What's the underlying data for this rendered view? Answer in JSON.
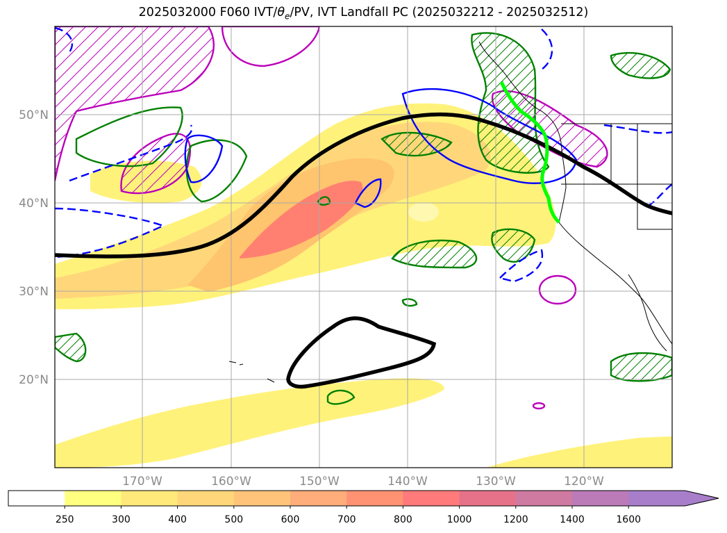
{
  "title": {
    "prefix": "2025032000 F060 IVT/",
    "theta": "θ",
    "theta_sub": "e",
    "suffix": "/PV, IVT Landfall PC (2025032212 - 2025032512)"
  },
  "grid": {
    "lat_labels": [
      "50°N",
      "40°N",
      "30°N",
      "20°N"
    ],
    "lon_labels": [
      "170°W",
      "160°W",
      "150°W",
      "140°W",
      "130°W",
      "120°W"
    ]
  },
  "colorbar": {
    "tick_labels": [
      "250",
      "300",
      "400",
      "500",
      "600",
      "700",
      "800",
      "1000",
      "1200",
      "1400",
      "1600"
    ],
    "colors": [
      "#ffffff",
      "#ffff80",
      "#ffe97a",
      "#ffd77a",
      "#ffc47a",
      "#ffad7a",
      "#ff9272",
      "#ff7a7a",
      "#e6728a",
      "#cf7aa0",
      "#bb7ab8",
      "#a87ecb"
    ]
  },
  "colors": {
    "ivt_fill_low": "#fff27a",
    "ivt_fill_mid": "#ffc46e",
    "ivt_fill_high": "#ff8070",
    "pv_contour": "#000000",
    "green_contour": "#008000",
    "blue_contour": "#0000ff",
    "magenta_contour": "#bb00bb",
    "landfall_line": "#00ff00"
  }
}
